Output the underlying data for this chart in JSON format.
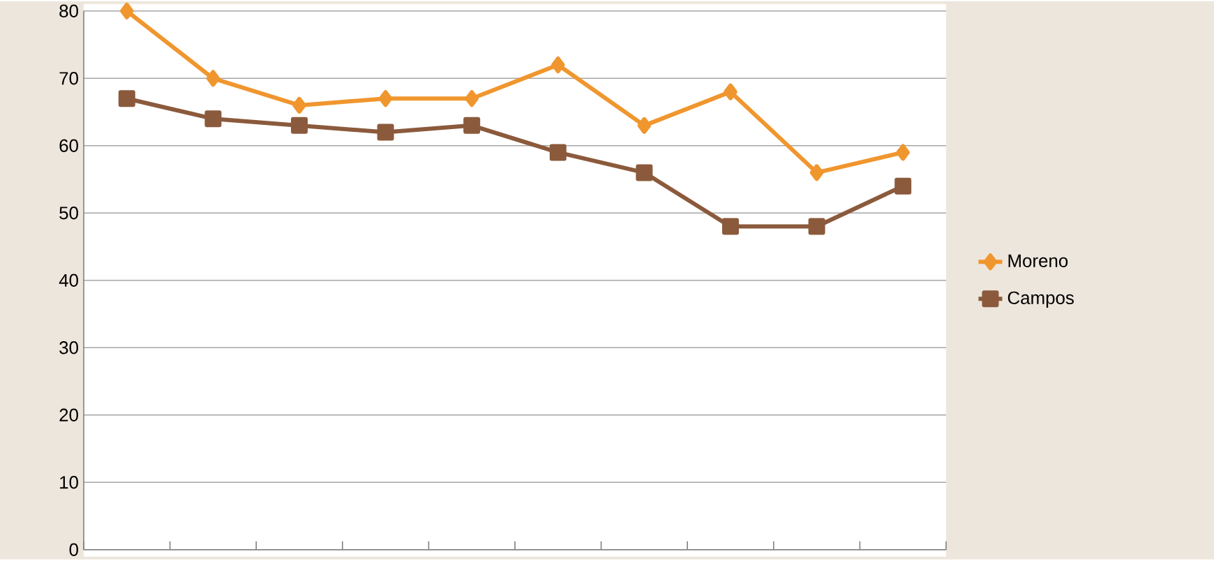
{
  "chart_data": {
    "type": "line",
    "categories": [
      null,
      null,
      null,
      null,
      null,
      null,
      null,
      null,
      null,
      null
    ],
    "series": [
      {
        "name": "Moreno",
        "color": "#f0962e",
        "marker": "diamond",
        "values": [
          80,
          70,
          66,
          67,
          67,
          72,
          63,
          68,
          56,
          59
        ]
      },
      {
        "name": "Campos",
        "color": "#8b5a3c",
        "marker": "square",
        "values": [
          67,
          64,
          63,
          62,
          63,
          59,
          56,
          48,
          48,
          54
        ]
      }
    ],
    "ylim": [
      0,
      80
    ],
    "yticks": [
      0,
      10,
      20,
      30,
      40,
      50,
      60,
      70,
      80
    ],
    "grid": "y",
    "legend": "right"
  }
}
